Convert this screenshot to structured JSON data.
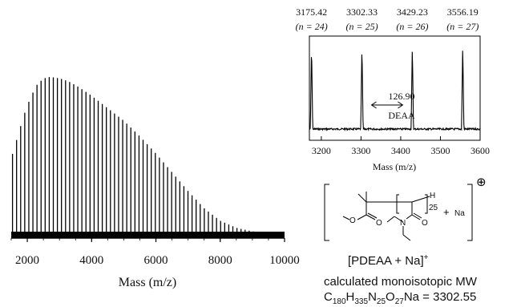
{
  "chart_data": [
    {
      "type": "line",
      "subtype": "mass-spectrum",
      "xlabel": "Mass (m/z)",
      "ylabel": "",
      "xlim": [
        1500,
        10000
      ],
      "xticks": [
        2000,
        4000,
        6000,
        8000,
        10000
      ],
      "peak_spacing": 126.9,
      "envelope": {
        "x": [
          1500,
          1700,
          1900,
          2100,
          2300,
          2500,
          2700,
          2900,
          3100,
          3300,
          3600,
          4000,
          4500,
          5000,
          5500,
          6000,
          6500,
          7000,
          7500,
          8000,
          8500,
          9000,
          9500,
          10000
        ],
        "y": [
          0.48,
          0.62,
          0.76,
          0.87,
          0.95,
          0.99,
          1.0,
          0.995,
          0.985,
          0.97,
          0.935,
          0.88,
          0.8,
          0.72,
          0.62,
          0.51,
          0.39,
          0.27,
          0.16,
          0.08,
          0.035,
          0.012,
          0.004,
          0.0
        ]
      }
    },
    {
      "type": "line",
      "subtype": "mass-spectrum-zoom",
      "xlabel": "Mass (m/z)",
      "ylabel": "",
      "xlim": [
        3170,
        3600
      ],
      "xticks": [
        3200,
        3300,
        3400,
        3500,
        3600
      ],
      "peaks": [
        {
          "x": 3175.42,
          "label": "3175.42",
          "n_label": "(n = 24)",
          "intensity": 0.9
        },
        {
          "x": 3302.33,
          "label": "3302.33",
          "n_label": "(n = 25)",
          "intensity": 0.9
        },
        {
          "x": 3429.23,
          "label": "3429.23",
          "n_label": "(n = 26)",
          "intensity": 0.9
        },
        {
          "x": 3556.19,
          "label": "3556.19",
          "n_label": "(n = 27)",
          "intensity": 0.9
        }
      ],
      "annotation": {
        "value": "126.90",
        "label": "DEAA",
        "from_x": 3302.33,
        "to_x": 3429.23
      }
    }
  ],
  "structure": {
    "subscript_n": "25",
    "end_group": "H",
    "plus": "+",
    "counter_ion": "Na",
    "charge_symbol": "⊕"
  },
  "caption": {
    "ion_label": "[PDEAA + Na]",
    "ion_charge": "+",
    "mw_line": "calculated monoisotopic MW",
    "formula_parts": [
      "C",
      "180",
      "H",
      "335",
      "N",
      "25",
      "O",
      "27",
      "Na = 3302.55"
    ]
  }
}
